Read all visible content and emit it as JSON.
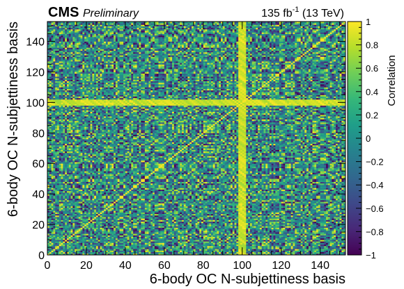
{
  "header": {
    "experiment": "CMS",
    "status": "Preliminary",
    "luminosity": "135 fb",
    "luminosity_exponent": "-1",
    "energy": " (13 TeV)"
  },
  "chart_data": {
    "type": "heatmap",
    "title": "",
    "xlabel": "6-body OC N-subjettiness basis",
    "ylabel": "6-body OC N-subjettiness basis",
    "zlabel": "Correlation",
    "xlim": [
      0,
      153
    ],
    "ylim": [
      0,
      153
    ],
    "zlim": [
      -1,
      1
    ],
    "n_bins": 153,
    "x_ticks": [
      0,
      20,
      40,
      60,
      80,
      100,
      120,
      140
    ],
    "y_ticks": [
      0,
      20,
      40,
      60,
      80,
      100,
      120,
      140
    ],
    "z_ticks": [
      -1,
      -0.8,
      -0.6,
      -0.4,
      -0.2,
      0,
      0.2,
      0.4,
      0.6,
      0.8,
      1
    ],
    "z_tick_labels": [
      "−1",
      "−0.8",
      "−0.6",
      "−0.4",
      "−0.2",
      "0",
      "0.2",
      "0.4",
      "0.6",
      "0.8",
      "1"
    ],
    "colormap": "viridis",
    "colormap_stops": [
      "#440154",
      "#482878",
      "#3e4989",
      "#31688e",
      "#26828e",
      "#1f9e89",
      "#35b779",
      "#6ece58",
      "#b5de2b",
      "#fde725"
    ],
    "diagonal_value": 1,
    "pattern": "symmetric; strong near-unit correlations along the diagonal and bands of high correlation around bin 100; overall mixed positive/negative correlations"
  }
}
